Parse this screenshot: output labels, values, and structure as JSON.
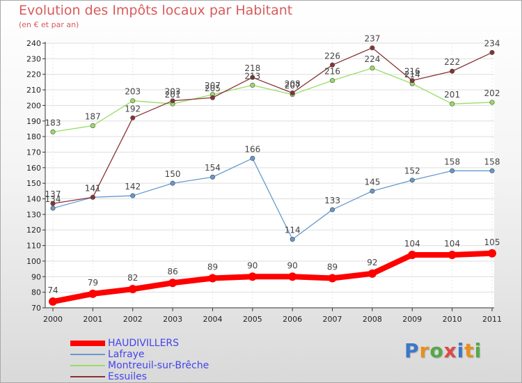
{
  "title": "Evolution des Impôts locaux par Habitant",
  "subtitle": "(en € et par an)",
  "logo": {
    "text": "Proxiti",
    "colors": [
      "#3a78c8",
      "#e8901a",
      "#56a84a",
      "#e04848",
      "#3a78c8",
      "#e8901a",
      "#56a84a"
    ]
  },
  "chart_data": {
    "type": "line",
    "title": "Evolution des Impôts locaux par Habitant",
    "subtitle": "(en € et par an)",
    "xlabel": "",
    "ylabel": "",
    "x": [
      "2000",
      "2001",
      "2002",
      "2003",
      "2004",
      "2005",
      "2006",
      "2007",
      "2008",
      "2009",
      "2010",
      "2011"
    ],
    "ylim": [
      70,
      240
    ],
    "yticks": [
      70,
      80,
      90,
      100,
      110,
      120,
      130,
      140,
      150,
      160,
      170,
      180,
      190,
      200,
      210,
      220,
      230,
      240
    ],
    "grid": "horizontal",
    "legend_position": "bottom-left",
    "series": [
      {
        "name": "HAUDIVILLERS",
        "color": "#ff0000",
        "values": [
          74,
          79,
          82,
          86,
          89,
          90,
          90,
          89,
          92,
          104,
          104,
          105
        ]
      },
      {
        "name": "Lafraye",
        "color": "#6699cc",
        "values": [
          134,
          141,
          142,
          150,
          154,
          166,
          114,
          133,
          145,
          152,
          158,
          158
        ]
      },
      {
        "name": "Montreuil-sur-Brêche",
        "color": "#99dd66",
        "values": [
          183,
          187,
          203,
          201,
          207,
          213,
          207,
          216,
          224,
          214,
          201,
          202
        ]
      },
      {
        "name": "Essuiles",
        "color": "#883333",
        "values": [
          137,
          141,
          192,
          203,
          205,
          218,
          208,
          226,
          237,
          216,
          222,
          234
        ]
      }
    ]
  }
}
